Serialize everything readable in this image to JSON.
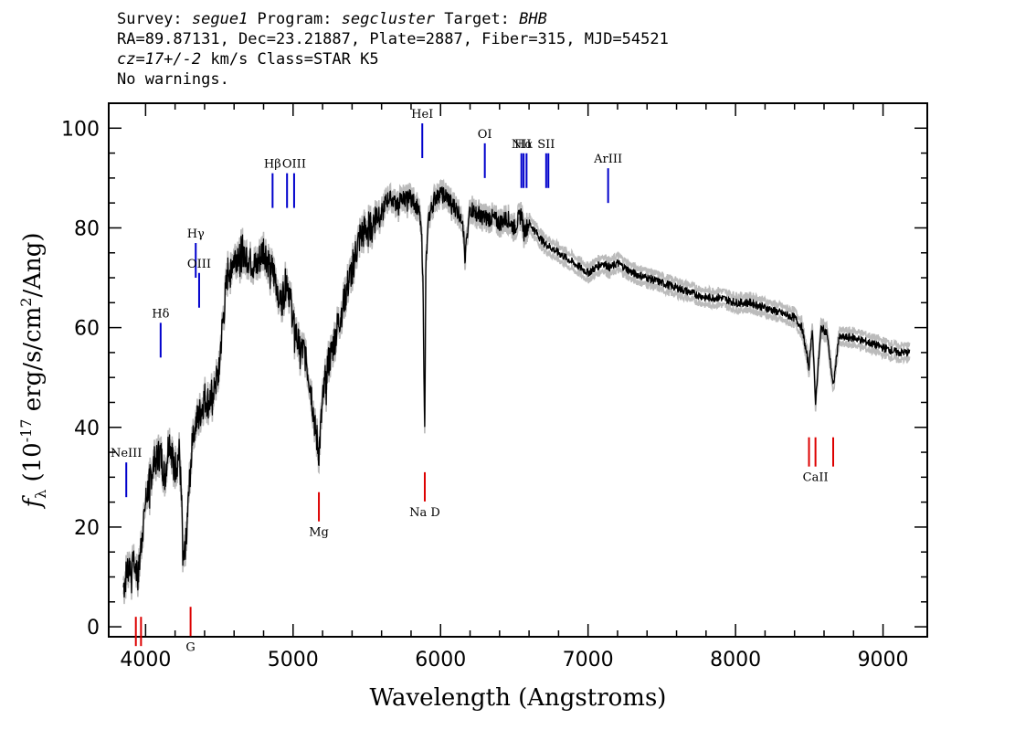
{
  "header": {
    "line1": {
      "survey_label": "Survey: ",
      "survey": "segue1",
      "program_label": " Program: ",
      "program": "segcluster",
      "target_label": " Target: ",
      "target": "BHB"
    },
    "line2": "RA=89.87131, Dec=23.21887, Plate=2887, Fiber=315, MJD=54521",
    "line3": {
      "cz": "cz=17+/-2",
      "rest": " km/s Class=STAR K5"
    },
    "line4": "No warnings."
  },
  "chart_data": {
    "type": "line",
    "xlabel": "Wavelength (Angstroms)",
    "ylabel": "f_λ (10^-17 erg/s/cm^2/Ang)",
    "xlim": [
      3750,
      9300
    ],
    "ylim": [
      -2,
      105
    ],
    "xticks": [
      4000,
      5000,
      6000,
      7000,
      8000,
      9000
    ],
    "yticks": [
      0,
      20,
      40,
      60,
      80,
      100
    ],
    "colors": {
      "flux": "#000000",
      "error": "#bbbbbb",
      "emission": "#0000cc",
      "absorption": "#dd0000"
    },
    "series": [
      {
        "x": [
          3850,
          3880,
          3920,
          3950,
          3980,
          4000,
          4030,
          4060,
          4100,
          4130,
          4160,
          4200,
          4230,
          4260,
          4290,
          4320,
          4360,
          4400,
          4430,
          4460,
          4490,
          4520,
          4560,
          4600,
          4650,
          4700,
          4750,
          4800,
          4850,
          4880,
          4920,
          4960,
          5000,
          5040,
          5080,
          5120,
          5150,
          5175,
          5200,
          5230,
          5260,
          5300,
          5350,
          5400,
          5450,
          5500,
          5550,
          5600,
          5650,
          5700,
          5750,
          5800,
          5850,
          5870,
          5880,
          5893,
          5900,
          5920,
          5960,
          6000,
          6050,
          6100,
          6150,
          6165,
          6200,
          6250,
          6300,
          6350,
          6400,
          6450,
          6500,
          6550,
          6563,
          6600,
          6650,
          6700,
          6750,
          6800,
          6850,
          6900,
          6950,
          7000,
          7050,
          7100,
          7150,
          7200,
          7300,
          7400,
          7500,
          7600,
          7700,
          7800,
          7900,
          8000,
          8100,
          8200,
          8300,
          8400,
          8450,
          8498,
          8520,
          8542,
          8580,
          8620,
          8662,
          8700,
          8800,
          8900,
          9000,
          9100,
          9180
        ],
        "y": [
          8,
          12,
          14,
          10,
          20,
          25,
          30,
          33,
          35,
          30,
          38,
          32,
          35,
          12,
          25,
          40,
          42,
          46,
          45,
          48,
          50,
          60,
          72,
          74,
          76,
          74,
          72,
          76,
          72,
          70,
          65,
          70,
          62,
          56,
          55,
          48,
          40,
          35,
          45,
          52,
          55,
          60,
          66,
          72,
          78,
          80,
          82,
          84,
          86,
          85,
          86,
          86,
          84,
          80,
          70,
          38,
          72,
          82,
          86,
          87,
          86,
          84,
          82,
          74,
          84,
          83,
          82,
          82,
          81,
          82,
          80,
          83,
          79,
          81,
          79,
          77,
          76,
          75,
          74,
          73,
          72,
          71,
          72,
          73,
          72,
          73,
          71,
          70,
          69,
          68,
          67,
          66,
          66,
          65,
          65,
          64,
          63,
          62,
          60,
          52,
          60,
          45,
          60,
          59,
          48,
          58,
          58,
          57,
          56,
          55,
          55
        ]
      }
    ],
    "emission_lines": [
      {
        "label": "NeIII",
        "wave": 3869,
        "y_flux": 26
      },
      {
        "label": "Hδ",
        "wave": 4102,
        "y_flux": 54
      },
      {
        "label": "Hγ",
        "wave": 4340,
        "y_flux": 70
      },
      {
        "label": "OIII",
        "wave": 4363,
        "y_flux": 64
      },
      {
        "label": "Hβ",
        "wave": 4861,
        "y_flux": 84
      },
      {
        "label": "OIII",
        "wave": 4959,
        "y_flux": 84
      },
      {
        "label": "OIII",
        "wave": 5007,
        "y_flux": 84
      },
      {
        "label": "HeI",
        "wave": 5876,
        "y_flux": 94
      },
      {
        "label": "OI",
        "wave": 6300,
        "y_flux": 90
      },
      {
        "label": "NII",
        "wave": 6548,
        "y_flux": 88
      },
      {
        "label": "Hα",
        "wave": 6563,
        "y_flux": 88
      },
      {
        "label": "NII",
        "wave": 6583,
        "y_flux": 88
      },
      {
        "label": "SII",
        "wave": 6716,
        "y_flux": 88
      },
      {
        "label": "SII",
        "wave": 6731,
        "y_flux": 88
      },
      {
        "label": "ArIII",
        "wave": 7136,
        "y_flux": 85
      }
    ],
    "absorption_lines": [
      {
        "label": "",
        "wave": 3934,
        "y_flux": 2
      },
      {
        "label": "",
        "wave": 3969,
        "y_flux": 2
      },
      {
        "label": "G",
        "wave": 4305,
        "y_flux": 4
      },
      {
        "label": "Mg",
        "wave": 5175,
        "y_flux": 27
      },
      {
        "label": "Na D",
        "wave": 5893,
        "y_flux": 31
      },
      {
        "label": "",
        "wave": 8498,
        "y_flux": 38
      },
      {
        "label": "CaII",
        "wave": 8542,
        "y_flux": 38
      },
      {
        "label": "",
        "wave": 8662,
        "y_flux": 38
      }
    ]
  }
}
